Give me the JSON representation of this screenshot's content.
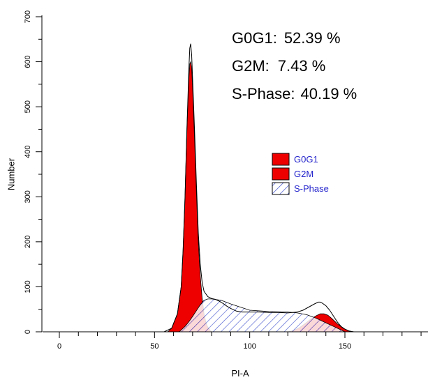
{
  "chart_data": {
    "type": "area",
    "title": "",
    "xlabel": "PI-A",
    "ylabel": "Number",
    "xlim": [
      0,
      190
    ],
    "ylim": [
      0,
      700
    ],
    "x_ticks": [
      0,
      50,
      100,
      150
    ],
    "y_ticks": [
      0,
      100,
      200,
      300,
      400,
      500,
      600,
      700
    ],
    "grid": false,
    "legend_position": "center-right",
    "legend": [
      {
        "name": "G0G1",
        "color": "#ee0000",
        "pattern": "solid"
      },
      {
        "name": "G2M",
        "color": "#ee0000",
        "pattern": "solid"
      },
      {
        "name": "S-Phase",
        "color": "#2b3fc8",
        "pattern": "hatch"
      }
    ],
    "stats": [
      {
        "label": "G0G1:",
        "value": "52.39 %"
      },
      {
        "label": "G2M:",
        "value": "7.43 %"
      },
      {
        "label": "S-Phase:",
        "value": "40.19 %"
      }
    ],
    "series": [
      {
        "name": "Histogram",
        "x": [
          55,
          59,
          62,
          64,
          65,
          66,
          67,
          68,
          68.5,
          69,
          69.5,
          70,
          71,
          72,
          73,
          74,
          75,
          76,
          78,
          80,
          82,
          84,
          86,
          88,
          90,
          93,
          96,
          100,
          105,
          110,
          115,
          120,
          125,
          128,
          131,
          134,
          136,
          137,
          138,
          140,
          142,
          144,
          146,
          148,
          150,
          152,
          154,
          156
        ],
        "y": [
          0,
          8,
          40,
          100,
          180,
          300,
          450,
          580,
          630,
          640,
          615,
          560,
          450,
          330,
          220,
          150,
          110,
          90,
          78,
          74,
          72,
          68,
          63,
          57,
          52,
          46,
          44,
          44,
          44,
          43,
          43,
          42,
          44,
          48,
          55,
          62,
          66,
          66,
          64,
          58,
          48,
          35,
          22,
          12,
          6,
          2,
          0,
          0
        ]
      },
      {
        "name": "G0G1",
        "x": [
          57,
          59,
          62,
          64,
          65,
          66,
          67,
          68,
          68.5,
          69,
          69.5,
          70,
          71,
          72,
          73,
          74,
          75,
          76,
          77,
          78,
          79,
          80
        ],
        "y": [
          0,
          8,
          40,
          100,
          180,
          300,
          450,
          560,
          595,
          600,
          585,
          540,
          430,
          310,
          200,
          125,
          75,
          40,
          20,
          10,
          4,
          0
        ]
      },
      {
        "name": "G2M",
        "x": [
          120,
          123,
          126,
          129,
          132,
          135,
          137,
          139,
          141,
          143,
          146,
          149,
          152,
          155
        ],
        "y": [
          0,
          3,
          9,
          18,
          28,
          36,
          40,
          40,
          37,
          30,
          18,
          8,
          2,
          0
        ]
      },
      {
        "name": "S-Phase",
        "x": [
          63,
          66,
          68,
          70,
          72,
          74,
          76,
          78,
          80,
          85,
          90,
          95,
          100,
          110,
          120,
          125,
          130,
          135,
          140,
          145,
          148,
          150
        ],
        "y": [
          0,
          12,
          22,
          34,
          47,
          60,
          70,
          73,
          73,
          70,
          62,
          55,
          48,
          45,
          44,
          42,
          38,
          30,
          20,
          10,
          4,
          0
        ]
      }
    ]
  }
}
